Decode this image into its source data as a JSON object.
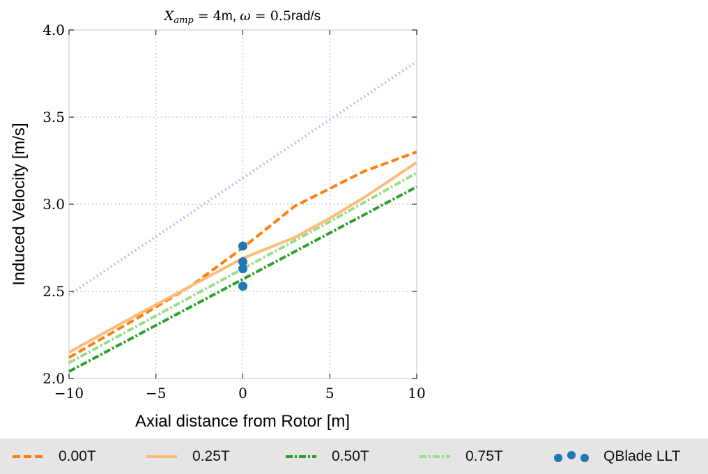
{
  "chart_data": {
    "type": "line",
    "title_math": "X_amp",
    "title_parts": {
      "var": "X",
      "sub": "amp",
      "eq1": " = 4",
      "unit1": "m, ",
      "omega": "ω",
      "eq2": " = 0.5",
      "unit2": "rad/s"
    },
    "xlabel": "Axial distance from Rotor [m]",
    "ylabel": "Induced Velocity [m/s]",
    "xlim": [
      -10,
      10
    ],
    "ylim": [
      2.0,
      4.0
    ],
    "xticks": [
      -10,
      -5,
      0,
      5,
      10
    ],
    "xtick_labels": [
      "−10",
      "−5",
      "0",
      "5",
      "10"
    ],
    "yticks": [
      2.0,
      2.5,
      3.0,
      3.5,
      4.0
    ],
    "ytick_labels": [
      "2.0",
      "2.5",
      "3.0",
      "3.5",
      "4.0"
    ],
    "grid": true,
    "legend_position": "bottom",
    "series": [
      {
        "name": "",
        "color": "#aec7e8",
        "style": "dotted",
        "x": [
          -10,
          10
        ],
        "y": [
          2.48,
          3.82
        ]
      },
      {
        "name": "0.00T",
        "color": "#ff7f0e",
        "style": "dashed",
        "x": [
          -10,
          -6,
          -3,
          0,
          3,
          5,
          7,
          10
        ],
        "y": [
          2.12,
          2.35,
          2.53,
          2.75,
          2.99,
          3.09,
          3.19,
          3.3
        ]
      },
      {
        "name": "0.25T",
        "color": "#ffbb78",
        "style": "solid",
        "x": [
          -10,
          -6,
          -3,
          0,
          3,
          5,
          7,
          10
        ],
        "y": [
          2.15,
          2.37,
          2.53,
          2.69,
          2.81,
          2.92,
          3.04,
          3.24
        ]
      },
      {
        "name": "0.50T",
        "color": "#2ca02c",
        "style": "dashdot",
        "x": [
          -10,
          0,
          10
        ],
        "y": [
          2.04,
          2.57,
          3.1
        ]
      },
      {
        "name": "0.75T",
        "color": "#98df8a",
        "style": "dashdot",
        "x": [
          -10,
          0,
          5,
          10
        ],
        "y": [
          2.09,
          2.63,
          2.9,
          3.18
        ]
      }
    ],
    "scatter": {
      "name": "QBlade LLT",
      "color": "#1f77b4",
      "x": [
        0,
        0,
        0,
        0
      ],
      "y": [
        2.76,
        2.67,
        2.63,
        2.53
      ]
    }
  }
}
